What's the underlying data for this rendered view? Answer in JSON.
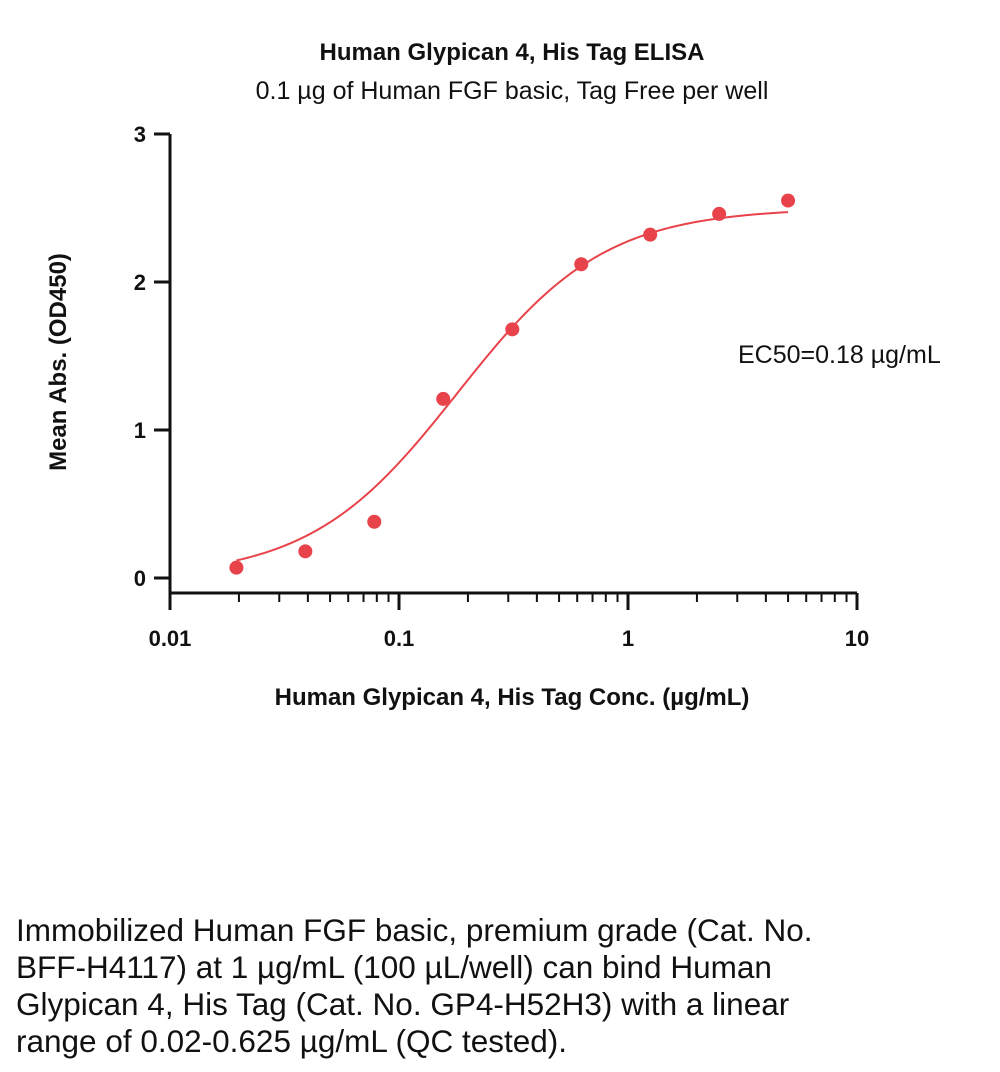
{
  "chart_data": {
    "type": "scatter",
    "title": "Human Glypican 4, His Tag ELISA",
    "subtitle": "0.1 µg of Human FGF basic, Tag Free per well",
    "xlabel": "Human Glypican 4, His Tag Conc. (µg/mL)",
    "ylabel": "Mean Abs. (OD450)",
    "x_scale": "log",
    "xlim": [
      0.01,
      10
    ],
    "ylim": [
      0,
      3
    ],
    "x_ticks": [
      "0.01",
      "0.1",
      "1",
      "10"
    ],
    "y_ticks": [
      "0",
      "1",
      "2",
      "3"
    ],
    "grid": false,
    "color": "#e8434a",
    "annotation": "EC50=0.18 µg/mL",
    "points": {
      "x": [
        0.0195,
        0.039,
        0.078,
        0.156,
        0.3125,
        0.625,
        1.25,
        2.5,
        5
      ],
      "y": [
        0.07,
        0.18,
        0.38,
        1.21,
        1.68,
        2.12,
        2.32,
        2.46,
        2.55
      ]
    },
    "fit": {
      "model": "4PL",
      "bottom": 0.0,
      "top": 2.5,
      "ec50": 0.18,
      "hill": 1.35,
      "x_range": [
        0.0195,
        5
      ]
    }
  },
  "caption": "Immobilized Human FGF basic, premium grade (Cat. No. BFF-H4117) at 1 µg/mL (100 µL/well) can bind Human Glypican 4, His Tag (Cat. No. GP4-H52H3) with a linear range of 0.02-0.625 µg/mL (QC tested)."
}
